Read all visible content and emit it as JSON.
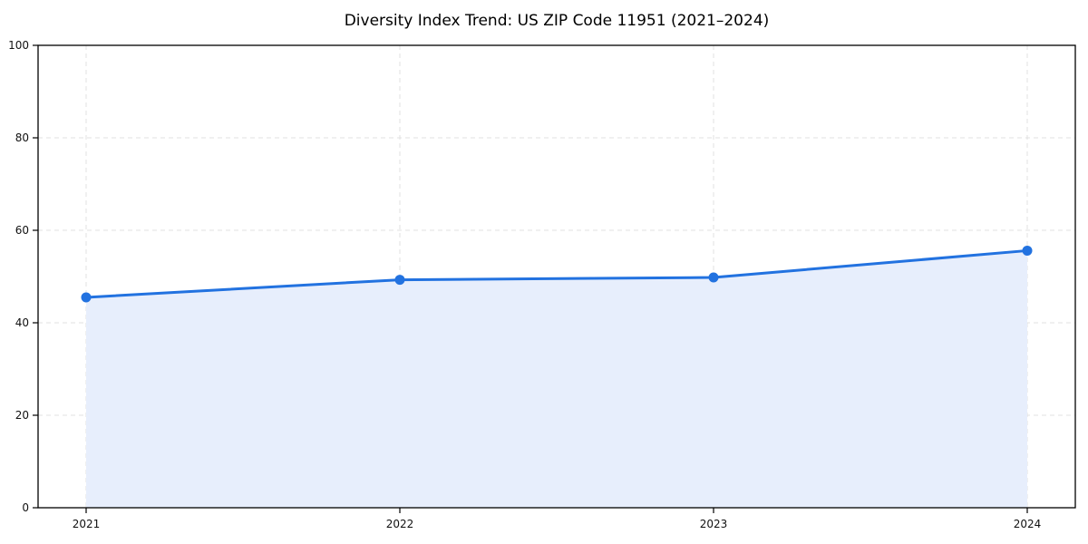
{
  "chart_data": {
    "type": "area",
    "title": "Diversity Index Trend: US ZIP Code 11951 (2021–2024)",
    "series_name": "Diversity Index",
    "x": [
      2021,
      2022,
      2023,
      2024
    ],
    "values": [
      45.5,
      49.3,
      49.8,
      55.6
    ],
    "xlabel": "",
    "ylabel": "",
    "ylim": [
      0,
      100
    ],
    "yticks": [
      0,
      20,
      40,
      60,
      80,
      100
    ],
    "grid": true,
    "grid_style": "dashed",
    "legend_position": "none",
    "line_color": "#2272e0",
    "marker_color": "#2272e0",
    "fill_color": "#e7eefc",
    "grid_color": "#e0e0e0",
    "axis_color": "#000000",
    "tick_label_color": "#111111"
  }
}
